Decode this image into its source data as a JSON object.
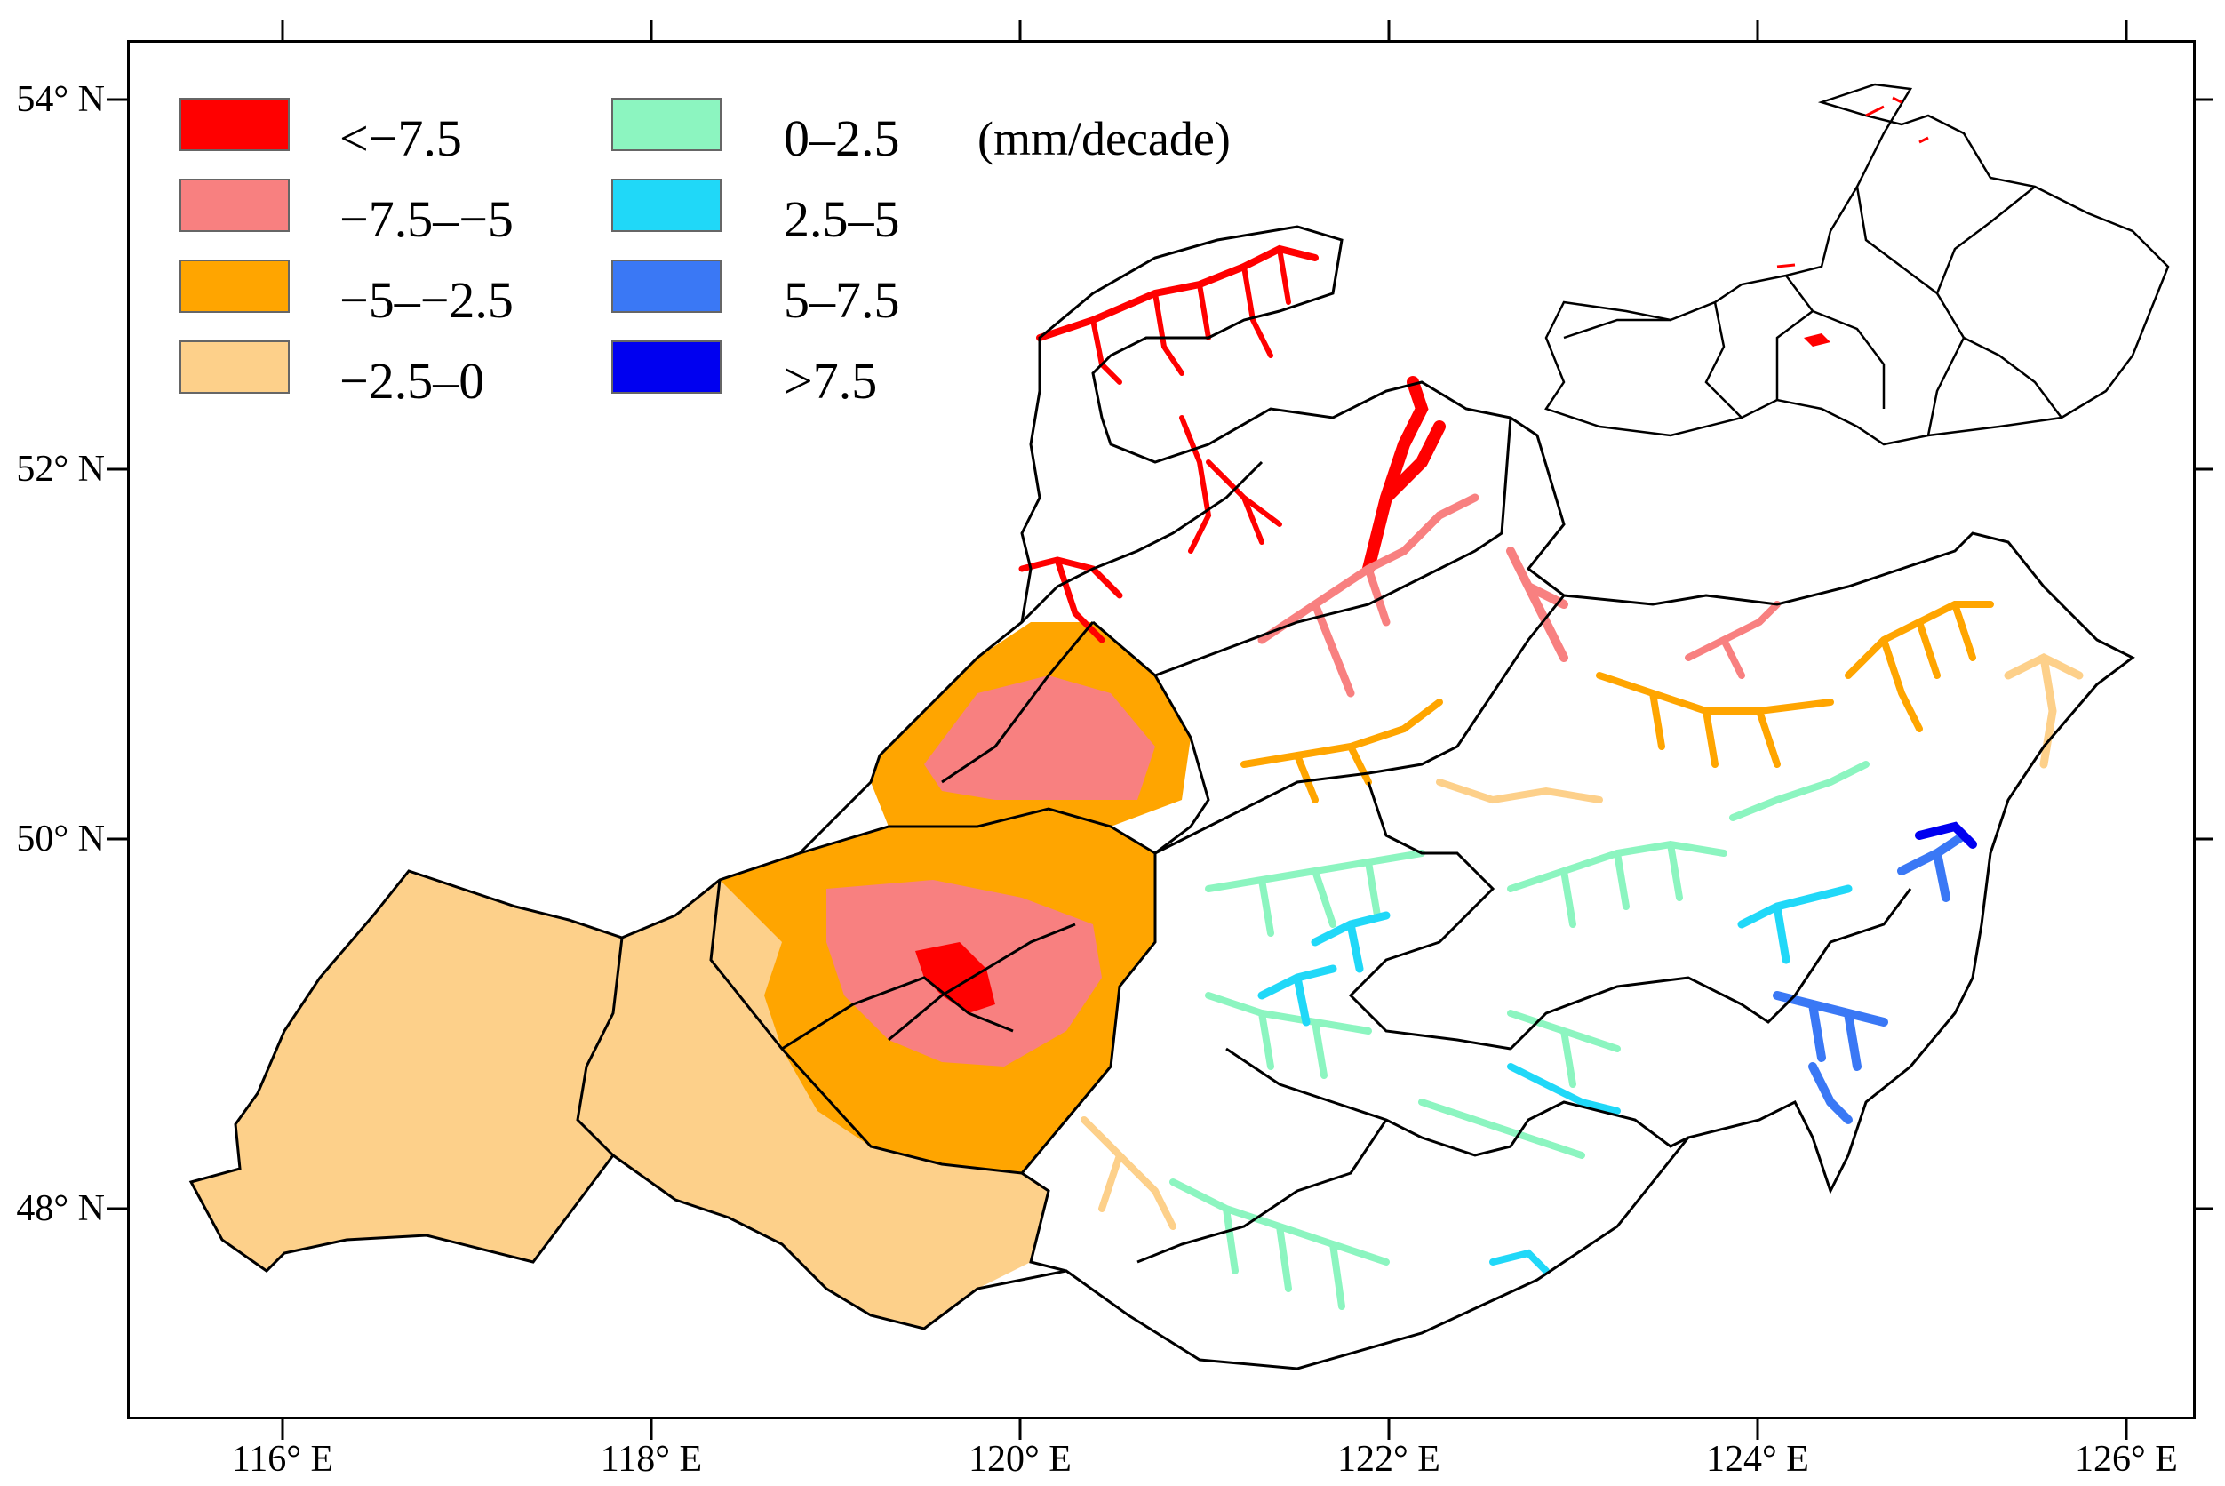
{
  "map": {
    "unit_label": "(mm/decade)",
    "latitude_labels": [
      "54° N",
      "52° N",
      "50° N",
      "48° N"
    ],
    "longitude_labels": [
      "116° E",
      "118° E",
      "120° E",
      "122° E",
      "124° E",
      "126° E"
    ],
    "legend": [
      {
        "label": "<−7.5",
        "color": "#ff0000"
      },
      {
        "label": "−7.5–−5",
        "color": "#f88080"
      },
      {
        "label": "−5–−2.5",
        "color": "#ffa500"
      },
      {
        "label": "−2.5–0",
        "color": "#fdd08a"
      },
      {
        "label": "0–2.5",
        "color": "#8cf5c0"
      },
      {
        "label": "2.5–5",
        "color": "#20d8f8"
      },
      {
        "label": "5–7.5",
        "color": "#3a78f5"
      },
      {
        "label": ">7.5",
        "color": "#0000f0"
      }
    ]
  }
}
